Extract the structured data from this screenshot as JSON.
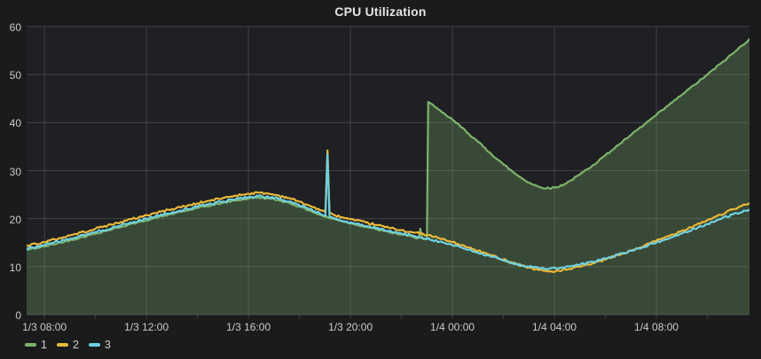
{
  "panel": {
    "title": "CPU Utilization"
  },
  "colors": {
    "panel_bg": "#1a1b1d",
    "plot_bg": "#1f2023",
    "grid": "#404247",
    "tick_text": "#c9cacc",
    "title_text": "#e3e4e6",
    "legend_text": "#d0d1d3",
    "series_green": "#7EB26D",
    "series_orange": "#EAB839",
    "series_cyan": "#6ED0E0"
  },
  "legend": {
    "items": [
      {
        "label": "1",
        "color": "#7EB26D"
      },
      {
        "label": "2",
        "color": "#EAB839"
      },
      {
        "label": "3",
        "color": "#6ED0E0"
      }
    ]
  },
  "chart_data": {
    "type": "line",
    "title": "CPU Utilization",
    "x_unit": "hours since 1/3 00:00",
    "x_range": [
      7.3,
      35.65
    ],
    "y_range": [
      0,
      60
    ],
    "y_ticks": [
      0,
      10,
      20,
      30,
      40,
      50,
      60
    ],
    "x_ticks": [
      {
        "value": 8,
        "label": "1/3 08:00"
      },
      {
        "value": 12,
        "label": "1/3 12:00"
      },
      {
        "value": 16,
        "label": "1/3 16:00"
      },
      {
        "value": 20,
        "label": "1/3 20:00"
      },
      {
        "value": 24,
        "label": "1/4 00:00"
      },
      {
        "value": 28,
        "label": "1/4 04:00"
      },
      {
        "value": 32,
        "label": "1/4 08:00"
      }
    ],
    "minor_tick_every_hours": 2,
    "grid": true,
    "legend_position": "bottom-left",
    "series": [
      {
        "name": "1",
        "color": "#7EB26D",
        "fill": true,
        "fill_opacity": 0.28,
        "noise": 0.18,
        "points": [
          [
            7.3,
            13.5
          ],
          [
            8,
            14.2
          ],
          [
            9,
            15.5
          ],
          [
            10,
            16.9
          ],
          [
            11,
            18.3
          ],
          [
            12,
            19.7
          ],
          [
            13,
            21.0
          ],
          [
            14,
            22.2
          ],
          [
            15,
            23.3
          ],
          [
            15.5,
            23.8
          ],
          [
            16,
            24.2
          ],
          [
            16.4,
            24.4
          ],
          [
            16.8,
            24.2
          ],
          [
            17.2,
            23.8
          ],
          [
            17.6,
            23.3
          ],
          [
            18,
            22.5
          ],
          [
            18.4,
            21.7
          ],
          [
            18.8,
            20.8
          ],
          [
            19.2,
            20.1
          ],
          [
            19.6,
            19.6
          ],
          [
            20.2,
            18.8
          ],
          [
            20.6,
            18.3
          ],
          [
            21,
            17.8
          ],
          [
            21.5,
            17.2
          ],
          [
            22,
            16.7
          ],
          [
            22.5,
            16.1
          ],
          [
            22.68,
            16.0
          ],
          [
            22.74,
            17.9
          ],
          [
            22.82,
            15.9
          ],
          [
            23.0,
            15.7
          ],
          [
            23.05,
            44.3
          ],
          [
            23.3,
            43.3
          ],
          [
            23.6,
            42.1
          ],
          [
            24,
            40.6
          ],
          [
            24.5,
            38.4
          ],
          [
            25,
            36.0
          ],
          [
            25.5,
            33.6
          ],
          [
            26,
            31.3
          ],
          [
            26.5,
            29.2
          ],
          [
            27,
            27.5
          ],
          [
            27.4,
            26.6
          ],
          [
            27.8,
            26.3
          ],
          [
            28.2,
            26.7
          ],
          [
            28.6,
            27.8
          ],
          [
            29,
            29.2
          ],
          [
            29.5,
            31.1
          ],
          [
            30,
            33.2
          ],
          [
            30.5,
            35.3
          ],
          [
            31,
            37.4
          ],
          [
            31.5,
            39.5
          ],
          [
            32,
            41.6
          ],
          [
            32.5,
            43.7
          ],
          [
            33,
            45.8
          ],
          [
            33.5,
            47.9
          ],
          [
            34,
            50.0
          ],
          [
            34.5,
            52.2
          ],
          [
            35,
            54.4
          ],
          [
            35.65,
            57.4
          ]
        ]
      },
      {
        "name": "2",
        "color": "#EAB839",
        "fill": false,
        "noise": 0.22,
        "points": [
          [
            7.3,
            14.4
          ],
          [
            8,
            15.1
          ],
          [
            9,
            16.5
          ],
          [
            10,
            17.9
          ],
          [
            11,
            19.3
          ],
          [
            12,
            20.7
          ],
          [
            13,
            22.0
          ],
          [
            14,
            23.2
          ],
          [
            15,
            24.3
          ],
          [
            15.5,
            24.8
          ],
          [
            16,
            25.2
          ],
          [
            16.4,
            25.4
          ],
          [
            16.8,
            25.2
          ],
          [
            17.2,
            24.8
          ],
          [
            17.6,
            24.3
          ],
          [
            18,
            23.5
          ],
          [
            18.4,
            22.7
          ],
          [
            18.8,
            21.8
          ],
          [
            19.02,
            21.3
          ],
          [
            19.1,
            34.2
          ],
          [
            19.18,
            21.1
          ],
          [
            19.4,
            20.7
          ],
          [
            19.8,
            20.1
          ],
          [
            20.2,
            19.6
          ],
          [
            20.6,
            19.2
          ],
          [
            21,
            18.7
          ],
          [
            21.5,
            18.1
          ],
          [
            22,
            17.6
          ],
          [
            22.5,
            17.1
          ],
          [
            23,
            16.6
          ],
          [
            23.5,
            15.9
          ],
          [
            24,
            15.1
          ],
          [
            24.5,
            14.2
          ],
          [
            25,
            13.3
          ],
          [
            25.5,
            12.4
          ],
          [
            26,
            11.5
          ],
          [
            26.5,
            10.6
          ],
          [
            27,
            9.8
          ],
          [
            27.4,
            9.3
          ],
          [
            27.8,
            9.0
          ],
          [
            28.2,
            9.1
          ],
          [
            28.6,
            9.5
          ],
          [
            29,
            10.0
          ],
          [
            29.5,
            10.7
          ],
          [
            30,
            11.5
          ],
          [
            30.5,
            12.4
          ],
          [
            31,
            13.3
          ],
          [
            31.5,
            14.3
          ],
          [
            32,
            15.4
          ],
          [
            32.5,
            16.4
          ],
          [
            33,
            17.5
          ],
          [
            33.5,
            18.6
          ],
          [
            34,
            19.7
          ],
          [
            34.5,
            20.8
          ],
          [
            35,
            21.9
          ],
          [
            35.65,
            23.2
          ]
        ]
      },
      {
        "name": "3",
        "color": "#6ED0E0",
        "fill": false,
        "noise": 0.22,
        "points": [
          [
            7.3,
            13.8
          ],
          [
            8,
            14.5
          ],
          [
            9,
            15.8
          ],
          [
            10,
            17.2
          ],
          [
            11,
            18.6
          ],
          [
            12,
            20.0
          ],
          [
            13,
            21.3
          ],
          [
            14,
            22.5
          ],
          [
            15,
            23.6
          ],
          [
            15.5,
            24.1
          ],
          [
            16,
            24.5
          ],
          [
            16.4,
            24.7
          ],
          [
            16.8,
            24.5
          ],
          [
            17.2,
            24.1
          ],
          [
            17.6,
            23.6
          ],
          [
            18,
            22.8
          ],
          [
            18.4,
            22.0
          ],
          [
            18.8,
            21.1
          ],
          [
            19.02,
            20.6
          ],
          [
            19.1,
            33.4
          ],
          [
            19.18,
            20.4
          ],
          [
            19.4,
            20.0
          ],
          [
            19.8,
            19.4
          ],
          [
            20.2,
            18.9
          ],
          [
            20.6,
            18.5
          ],
          [
            21,
            18.0
          ],
          [
            21.5,
            17.4
          ],
          [
            22,
            16.9
          ],
          [
            22.5,
            16.4
          ],
          [
            23,
            15.9
          ],
          [
            23.5,
            15.2
          ],
          [
            24,
            14.5
          ],
          [
            24.5,
            13.7
          ],
          [
            25,
            12.9
          ],
          [
            25.5,
            12.1
          ],
          [
            26,
            11.3
          ],
          [
            26.5,
            10.6
          ],
          [
            27,
            10.0
          ],
          [
            27.4,
            9.7
          ],
          [
            27.8,
            9.6
          ],
          [
            28.2,
            9.7
          ],
          [
            28.6,
            10.0
          ],
          [
            29,
            10.4
          ],
          [
            29.5,
            11.0
          ],
          [
            30,
            11.7
          ],
          [
            30.5,
            12.5
          ],
          [
            31,
            13.3
          ],
          [
            31.5,
            14.1
          ],
          [
            32,
            15.0
          ],
          [
            32.5,
            15.9
          ],
          [
            33,
            16.9
          ],
          [
            33.5,
            17.9
          ],
          [
            34,
            18.9
          ],
          [
            34.5,
            19.9
          ],
          [
            35,
            20.9
          ],
          [
            35.65,
            21.9
          ]
        ]
      }
    ]
  }
}
